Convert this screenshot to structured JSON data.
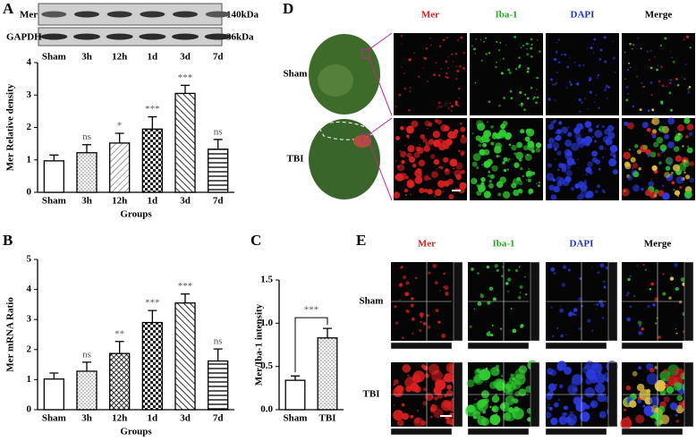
{
  "panel_labels": [
    "A",
    "B",
    "C",
    "D",
    "E"
  ],
  "blot": {
    "rows": [
      "Mer",
      "GAPDH"
    ],
    "sizes": [
      "140kDa",
      "36kDa"
    ],
    "lanes": [
      "Sham",
      "3h",
      "12h",
      "1d",
      "3d",
      "7d"
    ]
  },
  "chart_data": [
    {
      "type": "bar",
      "ylabel": "Mer Relative density",
      "xlabel": "Groups",
      "categories": [
        "Sham",
        "3h",
        "12h",
        "1d",
        "3d",
        "7d"
      ],
      "values": [
        0.97,
        1.22,
        1.52,
        1.95,
        3.05,
        1.33
      ],
      "errors": [
        0.18,
        0.25,
        0.3,
        0.38,
        0.25,
        0.3
      ],
      "annotations": [
        null,
        "ns",
        "*",
        "***",
        "***",
        "ns"
      ],
      "ylim": [
        0,
        4
      ],
      "yticks": [
        0,
        1,
        2,
        3,
        4
      ],
      "color": "#000000"
    },
    {
      "type": "bar",
      "ylabel": "Mer mRNA Ratio",
      "xlabel": "Groups",
      "categories": [
        "Sham",
        "3h",
        "12h",
        "1d",
        "3d",
        "7d"
      ],
      "values": [
        1.02,
        1.28,
        1.87,
        2.9,
        3.55,
        1.62
      ],
      "errors": [
        0.2,
        0.3,
        0.4,
        0.4,
        0.3,
        0.4
      ],
      "annotations": [
        null,
        "ns",
        "**",
        "***",
        "***",
        "ns"
      ],
      "ylim": [
        0,
        5
      ],
      "yticks": [
        0,
        1,
        2,
        3,
        4,
        5
      ],
      "color": "#000000"
    },
    {
      "type": "bar",
      "ylabel": "Mer/Iba-1 intensity",
      "categories": [
        "Sham",
        "TBI"
      ],
      "values": [
        0.34,
        0.83
      ],
      "errors": [
        0.05,
        0.11
      ],
      "bracket_label": "***",
      "ylim": [
        0,
        1.5
      ],
      "yticks": [
        {
          "value": 0,
          "label": "0.0"
        },
        {
          "value": 0.5,
          "label": "0.5"
        },
        {
          "value": 1,
          "label": "1.0"
        },
        {
          "value": 1.5,
          "label": "1.5"
        }
      ],
      "color": "#000000"
    }
  ],
  "panel_d": {
    "columns": [
      "Mer",
      "Iba-1",
      "DAPI",
      "Merge"
    ],
    "column_colors": [
      "#e02020",
      "#20b020",
      "#2030d0",
      "#000000"
    ],
    "rows": [
      "Sham",
      "TBI"
    ]
  },
  "panel_e": {
    "columns": [
      "Mer",
      "Iba-1",
      "DAPI",
      "Merge"
    ],
    "column_colors": [
      "#e02020",
      "#20b020",
      "#2030d0",
      "#000000"
    ],
    "rows": [
      "Sham",
      "TBI"
    ]
  }
}
